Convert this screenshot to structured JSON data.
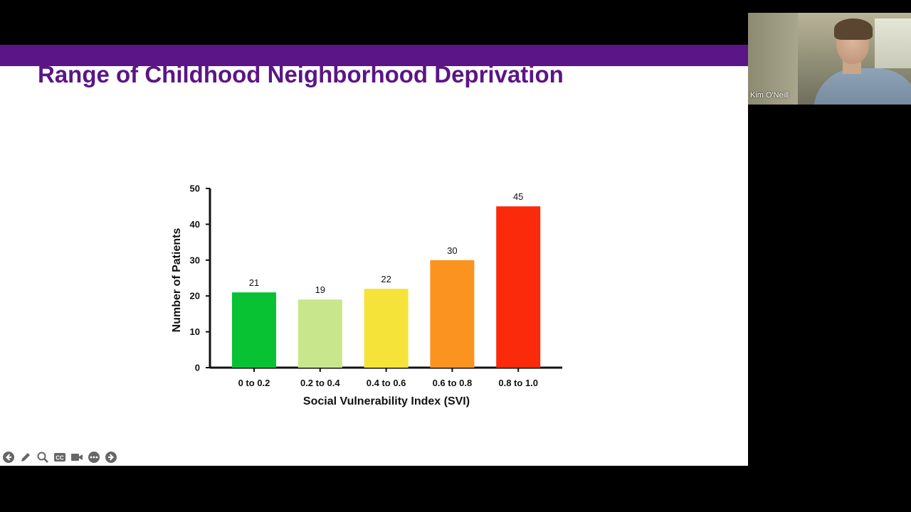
{
  "slide": {
    "title": "Range of Childhood Neighborhood Deprivation",
    "accent_color": "#5b1586"
  },
  "chart_data": {
    "type": "bar",
    "categories": [
      "0 to 0.2",
      "0.2 to 0.4",
      "0.4 to 0.6",
      "0.6 to 0.8",
      "0.8 to 1.0"
    ],
    "values": [
      21,
      19,
      22,
      30,
      45
    ],
    "data_labels": [
      "21",
      "19",
      "22",
      "30",
      "45"
    ],
    "colors": [
      "#08c234",
      "#c8e68c",
      "#f5e33a",
      "#fa9320",
      "#fa2a0a"
    ],
    "xlabel": "Social Vulnerability Index (SVI)",
    "ylabel": "Number of Patients",
    "ylim": [
      0,
      50
    ],
    "yticks": [
      0,
      10,
      20,
      30,
      40,
      50
    ],
    "grid": false
  },
  "toolbar": {
    "icons": [
      "back-icon",
      "pen-icon",
      "zoom-icon",
      "captions-icon",
      "video-icon",
      "more-icon",
      "forward-icon"
    ]
  },
  "video": {
    "participant_name": "Kim O'Neill"
  }
}
